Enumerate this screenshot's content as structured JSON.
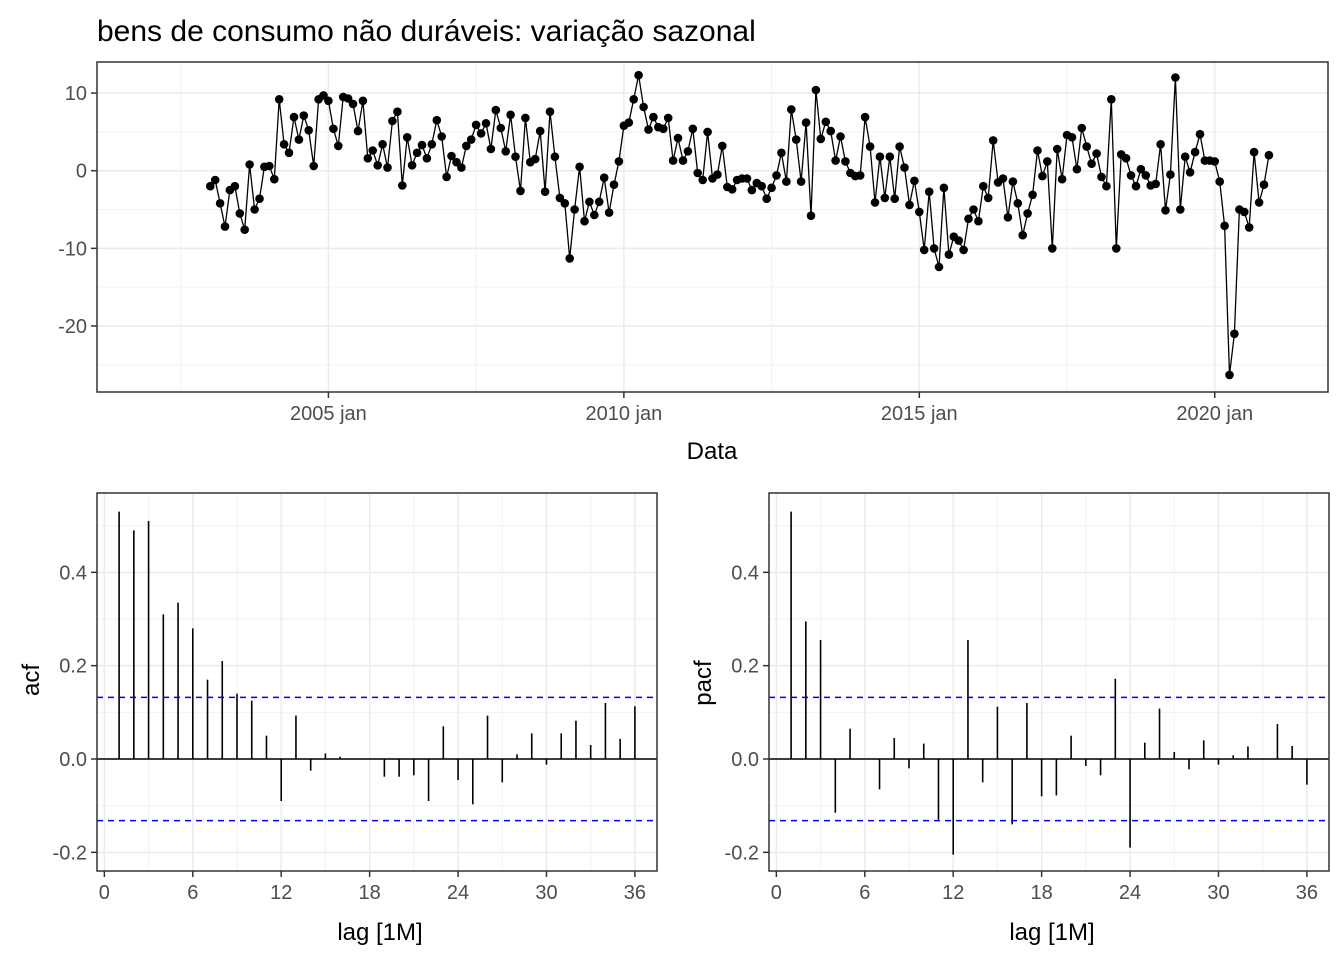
{
  "chart_data": [
    {
      "type": "line",
      "title": "bens de consumo não duráveis: variação sazonal",
      "xlabel": "Data",
      "ylabel": "",
      "x_ticks": [
        "2005 jan",
        "2010 jan",
        "2015 jan",
        "2020 jan"
      ],
      "y_ticks": [
        "10",
        "0",
        "-10",
        "-20"
      ],
      "x_range": [
        "2001-02",
        "2021-12"
      ],
      "ylim": [
        -28.5,
        14
      ],
      "start": "2003-01",
      "frequency": "monthly",
      "markers": true,
      "grid": true,
      "values": [
        -2.0,
        -1.2,
        -4.2,
        -7.2,
        -2.5,
        -2.0,
        -5.5,
        -7.6,
        0.8,
        -5.0,
        -3.6,
        0.5,
        0.6,
        -1.1,
        9.2,
        3.4,
        2.3,
        6.9,
        4.0,
        7.1,
        5.2,
        0.6,
        9.2,
        9.7,
        9.0,
        5.4,
        3.2,
        9.5,
        9.3,
        8.6,
        5.1,
        9.0,
        1.6,
        2.6,
        0.7,
        3.4,
        0.4,
        6.4,
        7.6,
        -1.9,
        4.3,
        0.7,
        2.3,
        3.3,
        1.6,
        3.4,
        6.5,
        4.4,
        -0.8,
        1.9,
        1.1,
        0.4,
        3.2,
        4.0,
        5.9,
        4.8,
        6.1,
        2.8,
        7.8,
        5.5,
        2.5,
        7.2,
        1.8,
        -2.6,
        6.8,
        1.1,
        1.5,
        5.1,
        -2.7,
        7.6,
        1.8,
        -3.5,
        -4.2,
        -11.3,
        -5.0,
        0.5,
        -6.5,
        -4.0,
        -5.7,
        -4.0,
        -0.9,
        -5.4,
        -1.8,
        1.2,
        5.8,
        6.2,
        9.2,
        12.3,
        8.2,
        5.3,
        6.9,
        5.6,
        5.4,
        6.8,
        1.3,
        4.2,
        1.3,
        2.5,
        5.4,
        -0.3,
        -1.2,
        5.0,
        -1.0,
        -0.5,
        3.2,
        -2.1,
        -2.4,
        -1.2,
        -1.0,
        -1.0,
        -2.5,
        -1.6,
        -2.0,
        -3.6,
        -2.2,
        -0.6,
        2.3,
        -1.4,
        7.9,
        4.0,
        -1.4,
        6.2,
        -5.8,
        10.4,
        4.1,
        6.3,
        5.1,
        1.3,
        4.4,
        1.2,
        -0.3,
        -0.7,
        -0.6,
        6.9,
        3.1,
        -4.1,
        1.8,
        -3.5,
        1.8,
        -3.6,
        3.1,
        0.4,
        -4.4,
        -1.3,
        -5.3,
        -10.2,
        -2.7,
        -10.0,
        -12.4,
        -2.2,
        -10.8,
        -8.5,
        -9.0,
        -10.2,
        -6.2,
        -5.0,
        -6.5,
        -2.0,
        -3.5,
        3.9,
        -1.5,
        -1.0,
        -6.0,
        -1.4,
        -4.2,
        -8.3,
        -5.5,
        -3.1,
        2.6,
        -0.7,
        1.2,
        -10.0,
        2.8,
        -1.1,
        4.6,
        4.3,
        0.2,
        5.5,
        3.1,
        0.9,
        2.2,
        -0.8,
        -2.0,
        9.2,
        -10.0,
        2.1,
        1.6,
        -0.6,
        -2.0,
        0.2,
        -0.6,
        -1.9,
        -1.7,
        3.4,
        -5.1,
        -0.5,
        12.0,
        -5.0,
        1.8,
        -0.2,
        2.4,
        4.7,
        1.3,
        1.3,
        1.2,
        -1.4,
        -7.1,
        -26.3,
        -21.0,
        -5.0,
        -5.3,
        -7.3,
        2.4,
        -4.1,
        -1.8,
        2.0
      ]
    },
    {
      "type": "bar",
      "ylabel": "acf",
      "xlabel": "lag [1M]",
      "x_ticks": [
        "0",
        "6",
        "12",
        "18",
        "24",
        "30",
        "36"
      ],
      "y_ticks": [
        "0.4",
        "0.2",
        "0.0",
        "-0.2"
      ],
      "xlim": [
        -0.5,
        37.5
      ],
      "ylim": [
        -0.24,
        0.57
      ],
      "confidence_bound": 0.132,
      "bound_color": "#0000ff",
      "lags": [
        1,
        2,
        3,
        4,
        5,
        6,
        7,
        8,
        9,
        10,
        11,
        12,
        13,
        14,
        15,
        16,
        17,
        18,
        19,
        20,
        21,
        22,
        23,
        24,
        25,
        26,
        27,
        28,
        29,
        30,
        31,
        32,
        33,
        34,
        35,
        36
      ],
      "values": [
        0.53,
        0.49,
        0.51,
        0.31,
        0.335,
        0.28,
        0.17,
        0.21,
        0.14,
        0.125,
        0.05,
        -0.09,
        0.093,
        -0.025,
        0.012,
        0.005,
        0.0,
        0.0,
        -0.038,
        -0.038,
        -0.035,
        -0.09,
        0.07,
        -0.045,
        -0.097,
        0.093,
        -0.05,
        0.01,
        0.055,
        -0.012,
        0.055,
        0.082,
        0.03,
        0.12,
        0.043,
        0.113
      ]
    },
    {
      "type": "bar",
      "ylabel": "pacf",
      "xlabel": "lag [1M]",
      "x_ticks": [
        "0",
        "6",
        "12",
        "18",
        "24",
        "30",
        "36"
      ],
      "y_ticks": [
        "0.4",
        "0.2",
        "0.0",
        "-0.2"
      ],
      "xlim": [
        -0.5,
        37.5
      ],
      "ylim": [
        -0.24,
        0.57
      ],
      "confidence_bound": 0.132,
      "bound_color": "#0000ff",
      "lags": [
        1,
        2,
        3,
        4,
        5,
        6,
        7,
        8,
        9,
        10,
        11,
        12,
        13,
        14,
        15,
        16,
        17,
        18,
        19,
        20,
        21,
        22,
        23,
        24,
        25,
        26,
        27,
        28,
        29,
        30,
        31,
        32,
        33,
        34,
        35,
        36
      ],
      "values": [
        0.53,
        0.295,
        0.255,
        -0.115,
        0.065,
        0.0,
        -0.065,
        0.045,
        -0.02,
        0.033,
        -0.13,
        -0.205,
        0.255,
        -0.05,
        0.112,
        -0.14,
        0.12,
        -0.08,
        -0.078,
        0.05,
        -0.015,
        -0.035,
        0.172,
        -0.19,
        0.035,
        0.108,
        0.015,
        -0.022,
        0.04,
        -0.012,
        0.008,
        0.027,
        0.0,
        0.075,
        0.028,
        -0.055
      ]
    }
  ]
}
